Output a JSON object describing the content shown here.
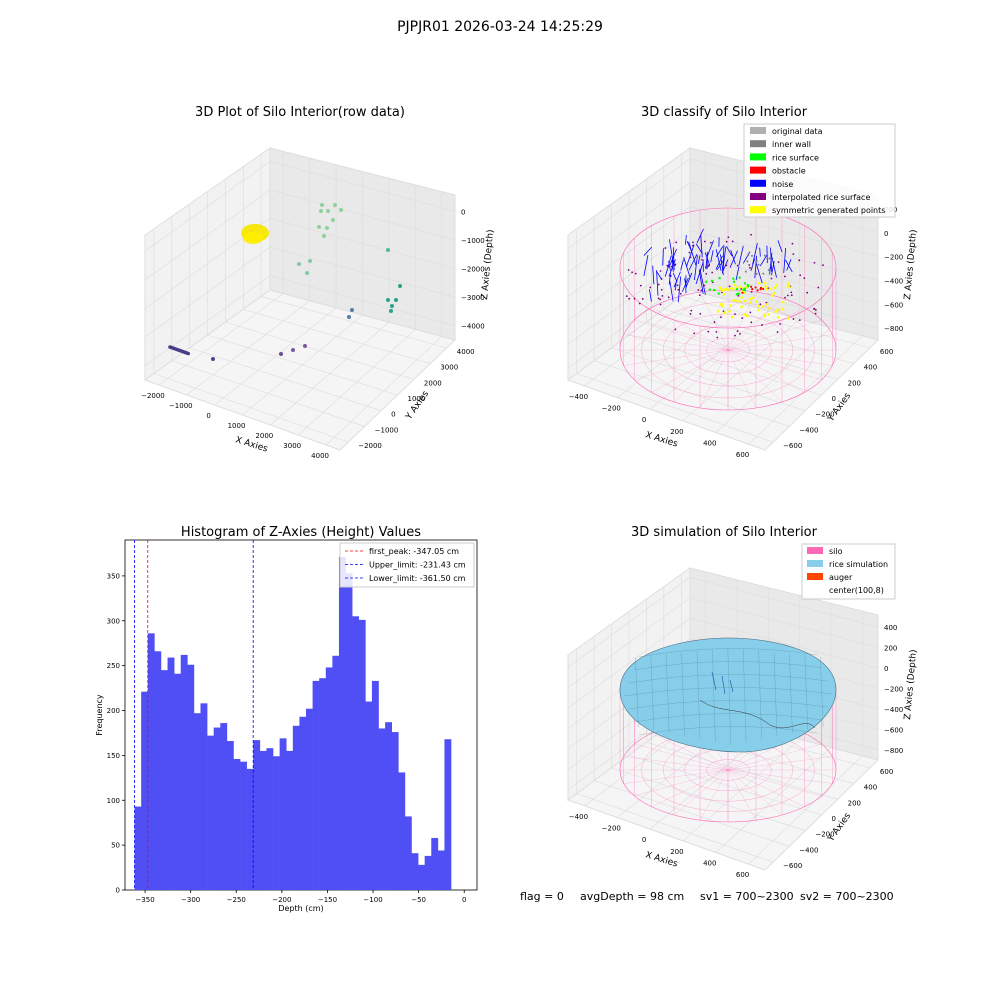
{
  "figure_title": "PJPJR01 2026-03-24 14:25:29",
  "status_line": {
    "flag": "flag = 0",
    "avg_depth": "avgDepth = 98 cm",
    "sv1": "sv1 = 700~2300",
    "sv2": "sv2 = 700~2300"
  },
  "colors": {
    "histogram_bar": "#4f4ff5",
    "first_peak_line": "#ff0000",
    "limit_line": "#0000ff",
    "silo_wire": "#ff69b4",
    "rice_surface": "#87ceeb",
    "auger": "#ff4500",
    "obstacle_cloud": "#f5e600"
  },
  "chart_data": [
    {
      "type": "scatter3d",
      "title": "3D Plot of Silo Interior(row data)",
      "xlabel": "X Axies",
      "ylabel": "Y Axies",
      "zlabel": "Z Axies (Depth)",
      "x_ticks": [
        "−2000",
        "−1000",
        "0",
        "1000",
        "2000",
        "3000",
        "4000"
      ],
      "y_ticks": [
        "−2000",
        "−1000",
        "0",
        "1000",
        "2000",
        "3000",
        "4000"
      ],
      "z_ticks": [
        "0",
        "−1000",
        "−2000",
        "−3000",
        "−4000"
      ],
      "xlim": [
        -2000,
        4000
      ],
      "ylim": [
        -2000,
        4000
      ],
      "zlim": [
        -4500,
        300
      ]
    },
    {
      "type": "scatter3d",
      "title": "3D classify of Silo Interior",
      "xlabel": "X Axies",
      "ylabel": "Y Axies",
      "zlabel": "Z Axies (Depth)",
      "x_ticks": [
        "−400",
        "−200",
        "0",
        "200",
        "400",
        "600"
      ],
      "y_ticks": [
        "−600",
        "−400",
        "−200",
        "0",
        "200",
        "400",
        "600"
      ],
      "z_ticks": [
        "200",
        "0",
        "−200",
        "−400",
        "−600",
        "−800"
      ],
      "legend_position": "top-right",
      "legend": [
        {
          "label": "original data",
          "color": "#b0b0b0"
        },
        {
          "label": "inner wall",
          "color": "#808080"
        },
        {
          "label": "rice surface",
          "color": "#00ff00"
        },
        {
          "label": "obstacle",
          "color": "#ff0000"
        },
        {
          "label": "noise",
          "color": "#0000ff"
        },
        {
          "label": "interpolated rice surface",
          "color": "#800080"
        },
        {
          "label": "symmetric generated points",
          "color": "#ffff00"
        }
      ]
    },
    {
      "type": "bar",
      "title": "Histogram of Z-Axies (Height) Values",
      "xlabel": "Depth (cm)",
      "ylabel": "Frequency",
      "xlim": [
        -372,
        14
      ],
      "ylim": [
        0,
        390
      ],
      "x_ticks": [
        -350,
        -300,
        -250,
        -200,
        -150,
        -100,
        -50,
        0
      ],
      "y_ticks": [
        0,
        50,
        100,
        150,
        200,
        250,
        300,
        350
      ],
      "bin_start": -361.5,
      "bin_width": 7.23,
      "values": [
        93,
        221,
        286,
        266,
        245,
        259,
        241,
        262,
        251,
        197,
        208,
        172,
        181,
        186,
        166,
        146,
        143,
        135,
        167,
        155,
        158,
        149,
        169,
        155,
        183,
        193,
        202,
        233,
        236,
        248,
        261,
        371,
        353,
        305,
        301,
        210,
        233,
        180,
        187,
        176,
        131,
        82,
        41,
        28,
        38,
        58,
        44,
        168
      ],
      "vlines": [
        {
          "label": "first_peak: -347.05 cm",
          "x": -347.05,
          "color": "#ff0000"
        },
        {
          "label": "Upper_limit: -231.43 cm",
          "x": -231.43,
          "color": "#0000ff"
        },
        {
          "label": "Lower_limit: -361.50 cm",
          "x": -361.5,
          "color": "#0000ff"
        }
      ],
      "legend_position": "top-right"
    },
    {
      "type": "surface3d",
      "title": "3D simulation of Silo Interior",
      "xlabel": "X Axies",
      "ylabel": "Y Axies",
      "zlabel": "Z Axies (Depth)",
      "x_ticks": [
        "−400",
        "−200",
        "0",
        "200",
        "400",
        "600"
      ],
      "y_ticks": [
        "−600",
        "−400",
        "−200",
        "0",
        "200",
        "400",
        "600"
      ],
      "z_ticks": [
        "400",
        "200",
        "0",
        "−200",
        "−400",
        "−600",
        "−800"
      ],
      "legend_position": "top-right",
      "legend": [
        {
          "label": "silo",
          "color": "#ff69b4"
        },
        {
          "label": "rice simulation",
          "color": "#87ceeb"
        },
        {
          "label": "auger",
          "color": "#ff4500"
        },
        {
          "label": "center(100,8)",
          "color": "none"
        }
      ]
    }
  ]
}
